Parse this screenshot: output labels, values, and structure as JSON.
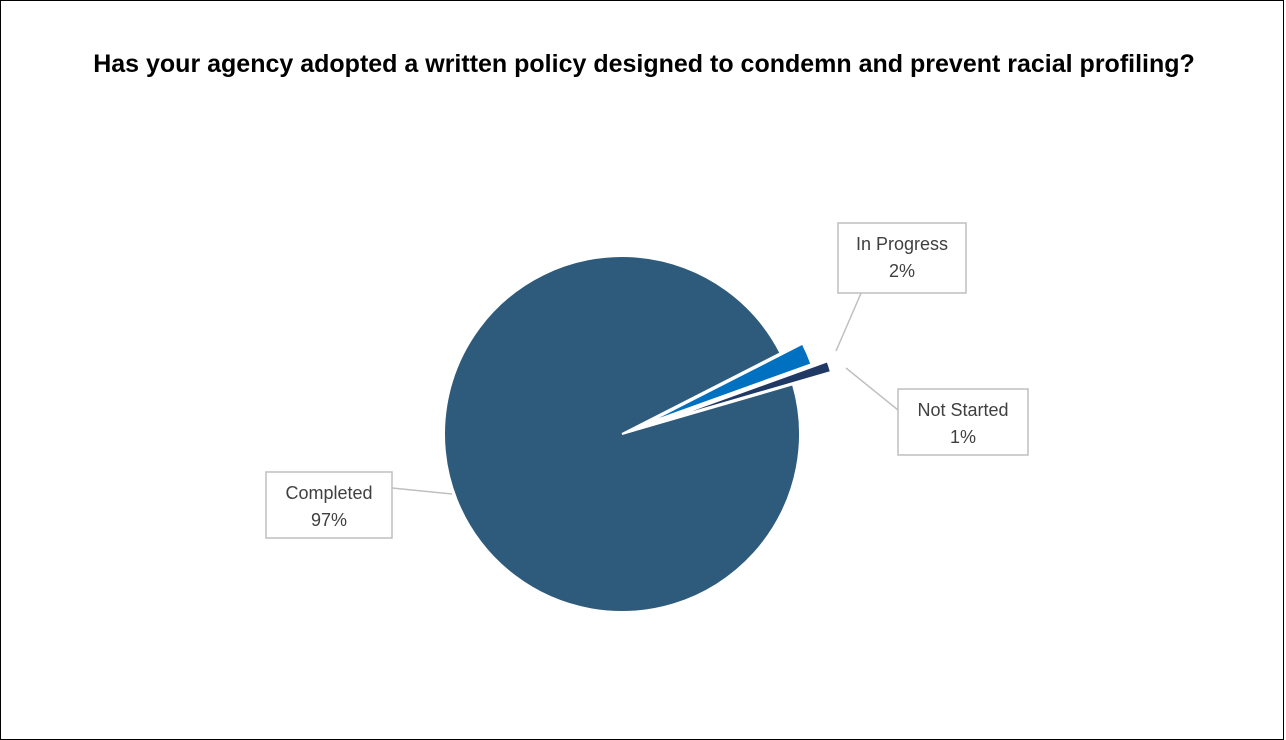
{
  "chart_data": {
    "type": "pie",
    "title": "Has your agency adopted a written policy designed to condemn and prevent racial profiling?",
    "slices": [
      {
        "label": "In Progress",
        "percent_label": "2%",
        "value": 2,
        "color": "#0070c0"
      },
      {
        "label": "Not Started",
        "percent_label": "1%",
        "value": 1,
        "color": "#1f3864"
      },
      {
        "label": "Completed",
        "percent_label": "97%",
        "value": 97,
        "color": "#2e5a7c"
      }
    ],
    "legend": "none",
    "data_labels": "callouts"
  }
}
